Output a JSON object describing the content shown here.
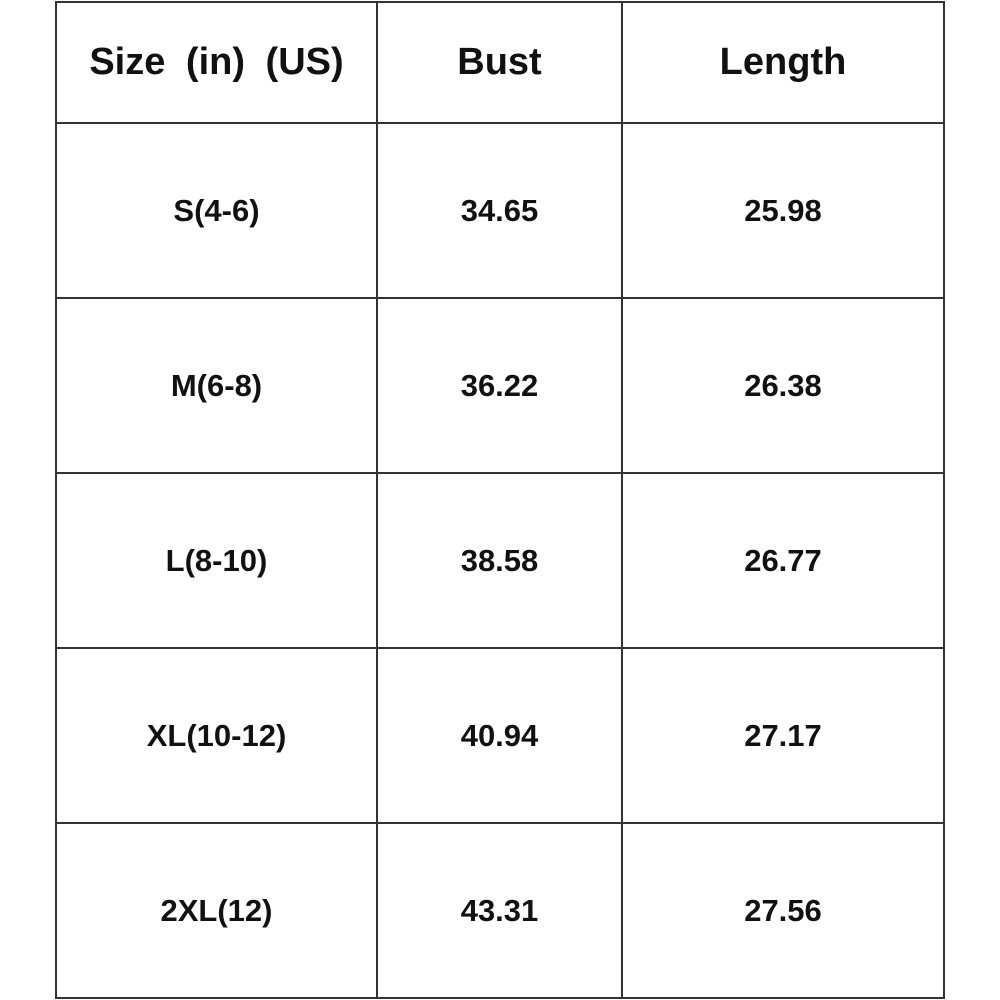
{
  "table": {
    "headers": [
      "Size  (in)  (US)",
      "Bust",
      "Length"
    ],
    "rows": [
      [
        "S(4-6)",
        "34.65",
        "25.98"
      ],
      [
        "M(6-8)",
        "36.22",
        "26.38"
      ],
      [
        "L(8-10)",
        "38.58",
        "26.77"
      ],
      [
        "XL(10-12)",
        "40.94",
        "27.17"
      ],
      [
        "2XL(12)",
        "43.31",
        "27.56"
      ]
    ]
  }
}
